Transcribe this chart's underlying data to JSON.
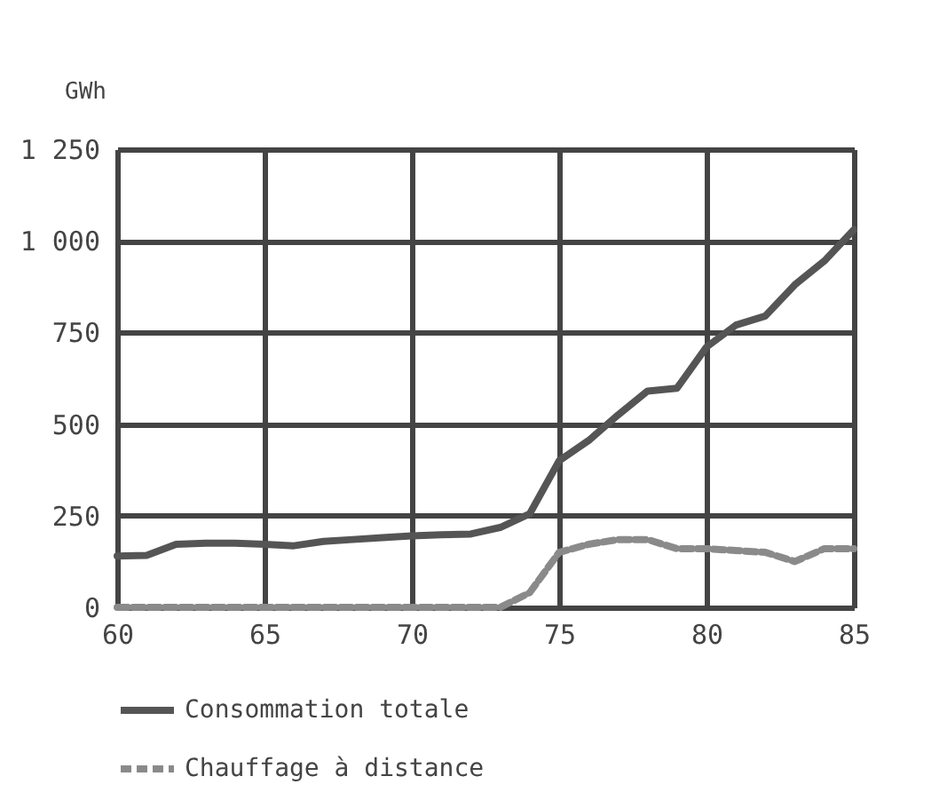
{
  "chart_data": {
    "type": "line",
    "ylabel": "GWh",
    "x": [
      60,
      61,
      62,
      63,
      64,
      65,
      66,
      67,
      68,
      69,
      70,
      71,
      72,
      73,
      74,
      75,
      76,
      77,
      78,
      79,
      80,
      81,
      82,
      83,
      84,
      85
    ],
    "series": [
      {
        "name": "Consommation totale",
        "color": "#555555",
        "line_style": "solid",
        "values": [
          140,
          142,
          172,
          175,
          175,
          172,
          168,
          180,
          185,
          190,
          195,
          198,
          200,
          218,
          255,
          400,
          455,
          525,
          590,
          598,
          710,
          770,
          795,
          880,
          945,
          1030
        ]
      },
      {
        "name": "Chauffage à distance",
        "color": "#8a8a8a",
        "line_style": "dashed",
        "values": [
          0,
          0,
          0,
          0,
          0,
          0,
          0,
          0,
          0,
          0,
          0,
          0,
          0,
          0,
          40,
          150,
          172,
          185,
          185,
          160,
          160,
          155,
          150,
          125,
          160,
          160
        ]
      }
    ],
    "xlim": [
      60,
      85
    ],
    "xticks": [
      60,
      65,
      70,
      75,
      80,
      85
    ],
    "ylim": [
      0,
      1250
    ],
    "yticks": [
      0,
      250,
      500,
      750,
      {
        "value": 1000,
        "label": "1 000"
      },
      {
        "value": 1250,
        "label": "1 250"
      }
    ],
    "grid": true,
    "legend": "bottom"
  }
}
